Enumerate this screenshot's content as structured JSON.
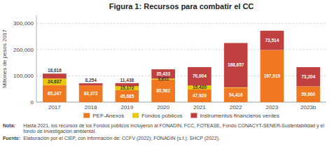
{
  "chart_data": {
    "type": "bar",
    "stacked": true,
    "title": "Figura 1: Recursos para combatir el CC",
    "y_label": "Millones de pesos 2017",
    "categories": [
      "2017",
      "2018",
      "2019",
      "2020",
      "2021",
      "2022",
      "2023",
      "2023b"
    ],
    "series": [
      {
        "name": "PEF-Anexos",
        "color": "#F07820",
        "values": [
          65247,
          63372,
          45685,
          85562,
          47920,
          54416,
          197919,
          59660
        ],
        "value_labels": [
          "65,247",
          "63,372",
          "45,685",
          "85,562",
          "47,920",
          "54,416",
          "197,919",
          "59,660"
        ]
      },
      {
        "name": "Fondos públicos",
        "color": "#E8C800",
        "values": [
          24637,
          0,
          15172,
          3811,
          15420,
          1818,
          318,
          318
        ],
        "value_labels": [
          "24,637",
          null,
          "15,172",
          "3,811",
          "15,420",
          null,
          null,
          null
        ]
      },
      {
        "name": "Instrumentos financieros verdes",
        "color": "#C04040",
        "values": [
          18616,
          8254,
          11438,
          35433,
          70004,
          168657,
          73514,
          73204
        ],
        "value_labels": [
          "18,616",
          "8,254",
          "11,438",
          "35,433",
          "70,004",
          "168,657",
          "73,514",
          "73,204"
        ]
      }
    ],
    "ylim": [
      0,
      330000
    ],
    "yticks": [
      0,
      {
        "value": 100000,
        "label": "100,000"
      },
      {
        "value": 200000,
        "label": "200,000"
      },
      {
        "value": 300000,
        "label": "300,000"
      }
    ],
    "grid": true,
    "legend": "bottom",
    "data_labels": true,
    "annotations": [
      "Nota:",
      "Hasta 2021, los recursos de los Fondos públicos incluyeron al FONADIN, FCC, FOTEASE, Fondo CONACYT-SENER-Sustentabilidad y el fondo de investigación ambiental.",
      "Fuente:",
      "Elaboración por el CIEP, con información de: CCFV (2022); FONADIN (s.f.); SHCP (2022)."
    ]
  }
}
